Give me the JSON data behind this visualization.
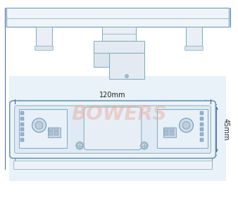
{
  "bg_color": "#ffffff",
  "light_blue_bg": "#cde4f0",
  "outline_color": "#6699bb",
  "lc": "#7aaabb",
  "dim_color": "#4466aa",
  "bowers_color": "#e8b0a0",
  "dim_120": "120mm",
  "dim_45": "45mm",
  "fig_w": 3.38,
  "fig_h": 2.91,
  "dpi": 100
}
